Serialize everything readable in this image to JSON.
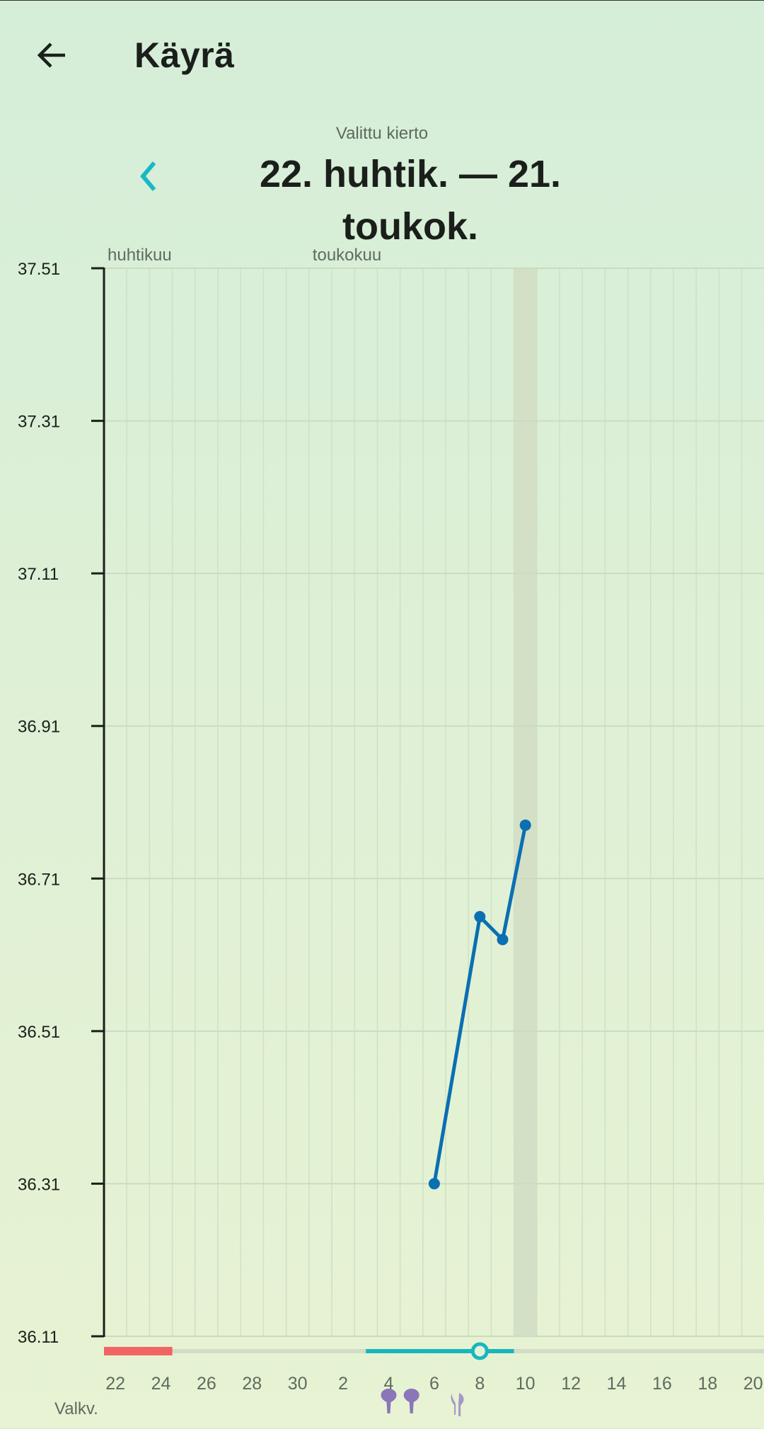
{
  "header": {
    "title": "Käyrä",
    "back_icon": "arrow-left-icon"
  },
  "cycle": {
    "label": "Valittu kierto",
    "range": "22. huhtik. — 21. toukok.",
    "prev_icon": "chevron-left-icon"
  },
  "chart_data": {
    "type": "line",
    "month_labels": [
      {
        "label": "huhtikuu",
        "day_index": 0
      },
      {
        "label": "toukokuu",
        "day_index": 9
      }
    ],
    "days": [
      "22",
      "23",
      "24",
      "25",
      "26",
      "27",
      "28",
      "29",
      "30",
      "1",
      "2",
      "3",
      "4",
      "5",
      "6",
      "7",
      "8",
      "9",
      "10",
      "11",
      "12",
      "13",
      "14",
      "15",
      "16",
      "17",
      "18",
      "19",
      "20",
      "21"
    ],
    "x_tick_labels": [
      "22",
      "24",
      "26",
      "28",
      "30",
      "2",
      "4",
      "6",
      "8",
      "10",
      "12",
      "14",
      "16",
      "18",
      "20"
    ],
    "y_ticks": [
      "37.51",
      "37.31",
      "37.11",
      "36.91",
      "36.71",
      "36.51",
      "36.31",
      "36.11"
    ],
    "ylim": [
      36.11,
      37.51
    ],
    "grid": true,
    "highlighted_day": "10",
    "series": [
      {
        "points": [
          {
            "day": "6",
            "value": 36.31
          },
          {
            "day": "8",
            "value": 36.66
          },
          {
            "day": "9",
            "value": 36.63
          },
          {
            "day": "10",
            "value": 36.78
          }
        ]
      }
    ],
    "period_days": [
      "22",
      "23",
      "24"
    ],
    "fertile_window_days": [
      "3",
      "4",
      "5",
      "6",
      "7",
      "8",
      "9"
    ],
    "ovulation_day": "8",
    "mucus_row_label": "Valkv.",
    "mucus_markers": [
      {
        "day": "4",
        "icon": "egg-white-mucus-icon"
      },
      {
        "day": "5",
        "icon": "egg-white-mucus-icon"
      },
      {
        "day": "7",
        "icon": "watery-mucus-icon"
      }
    ],
    "colors": {
      "line": "#0b6fb2",
      "period": "#f06464",
      "fertile": "#1ab6bf",
      "track": "#d3dcc6",
      "mucus": "#8a76b8",
      "mucus_light": "#a597c8",
      "highlight": "#d3e0c6"
    }
  }
}
